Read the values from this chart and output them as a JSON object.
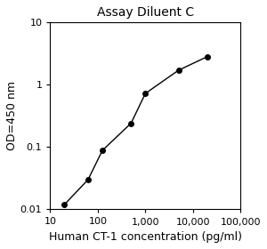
{
  "title": "Assay Diluent C",
  "xlabel": "Human CT-1 concentration (pg/ml)",
  "ylabel": "OD=450 nm",
  "x_data": [
    20,
    62.5,
    125,
    500,
    1000,
    5000,
    20000
  ],
  "y_data": [
    0.012,
    0.03,
    0.088,
    0.24,
    0.72,
    1.7,
    2.8
  ],
  "xlim": [
    10,
    100000
  ],
  "ylim": [
    0.01,
    10
  ],
  "line_color": "#000000",
  "marker_color": "#000000",
  "marker_size": 4,
  "line_width": 1.0,
  "title_fontsize": 10,
  "label_fontsize": 9,
  "tick_fontsize": 8,
  "background_color": "#ffffff",
  "x_ticks": [
    10,
    100,
    1000,
    10000,
    100000
  ],
  "x_tick_labels": [
    "10",
    "100",
    "1,000",
    "10,000",
    "100,000"
  ],
  "y_ticks": [
    0.01,
    0.1,
    1,
    10
  ],
  "y_tick_labels": [
    "0.01",
    "0.1",
    "1",
    "10"
  ]
}
